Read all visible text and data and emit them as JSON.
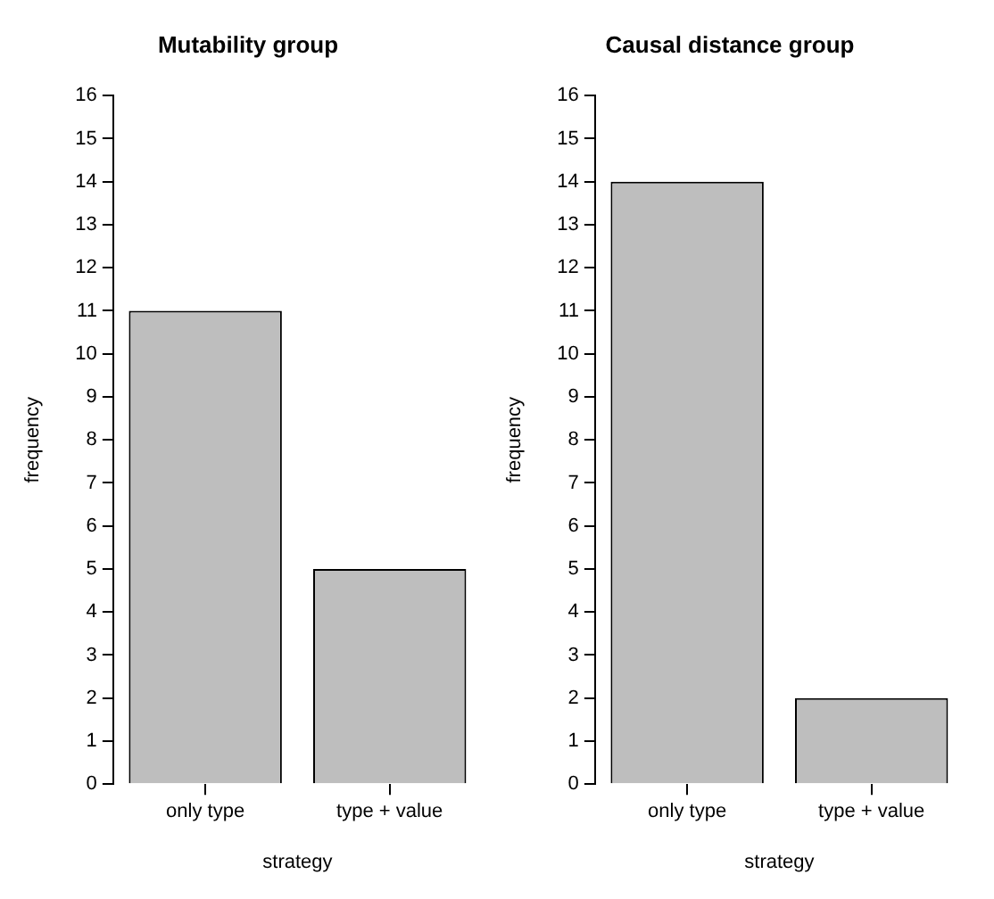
{
  "chart_data": [
    {
      "type": "bar",
      "title": "Mutability group",
      "xlabel": "strategy",
      "ylabel": "frequency",
      "categories": [
        "only type",
        "type + value"
      ],
      "values": [
        11,
        5
      ],
      "color": "#bebebe",
      "ylim": [
        0,
        16
      ],
      "yticks": [
        0,
        1,
        2,
        3,
        4,
        5,
        6,
        7,
        8,
        9,
        10,
        11,
        12,
        13,
        14,
        15,
        16
      ]
    },
    {
      "type": "bar",
      "title": "Causal distance group",
      "xlabel": "strategy",
      "ylabel": "frequency",
      "categories": [
        "only type",
        "type + value"
      ],
      "values": [
        14,
        2
      ],
      "color": "#bebebe",
      "ylim": [
        0,
        16
      ],
      "yticks": [
        0,
        1,
        2,
        3,
        4,
        5,
        6,
        7,
        8,
        9,
        10,
        11,
        12,
        13,
        14,
        15,
        16
      ]
    }
  ]
}
